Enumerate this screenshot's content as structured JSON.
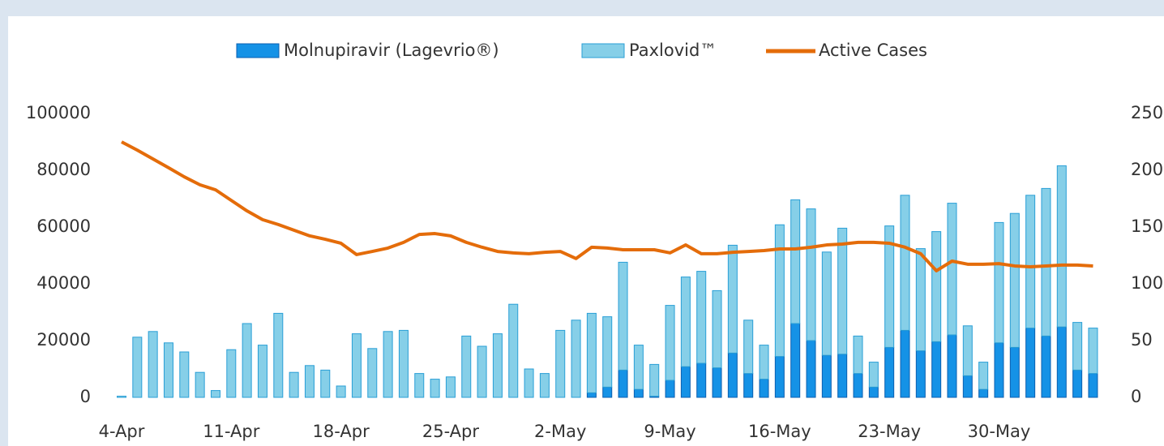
{
  "chart_data": {
    "type": "bar_line",
    "categories": [
      "4-Apr",
      null,
      null,
      null,
      null,
      null,
      null,
      "11-Apr",
      null,
      null,
      null,
      null,
      null,
      null,
      "18-Apr",
      null,
      null,
      null,
      null,
      null,
      null,
      "25-Apr",
      null,
      null,
      null,
      null,
      null,
      null,
      "2-May",
      null,
      null,
      null,
      null,
      null,
      null,
      "9-May",
      null,
      null,
      null,
      null,
      null,
      null,
      "16-May",
      null,
      null,
      null,
      null,
      null,
      null,
      "23-May",
      null,
      null,
      null,
      null,
      null,
      null,
      "30-May",
      null,
      null,
      null,
      null,
      null,
      null
    ],
    "series": [
      {
        "name": "Molnupiravir (Lagevrio®)",
        "color": "#1592e6",
        "stroke": "#0b5fb0",
        "kind": "bar",
        "axis": "y2",
        "values": [
          0,
          0,
          0,
          0,
          0,
          0,
          0,
          0,
          0,
          0,
          0,
          0,
          0,
          0,
          0,
          0,
          0,
          0,
          0,
          0,
          0,
          0,
          0,
          0,
          0,
          0,
          0,
          0,
          0,
          0,
          4,
          9,
          24,
          7,
          1,
          15,
          27,
          30,
          26,
          39,
          21,
          16,
          36,
          65,
          50,
          37,
          38,
          21,
          9,
          44,
          59,
          41,
          49,
          55,
          19,
          7,
          48,
          44,
          61,
          54,
          62,
          24,
          21
        ]
      },
      {
        "name": "Paxlovid™",
        "color": "#86cfe8",
        "stroke": "#2a9fd6",
        "kind": "bar",
        "axis": "y2",
        "values": [
          1,
          53,
          58,
          48,
          40,
          22,
          6,
          42,
          65,
          46,
          74,
          22,
          28,
          24,
          10,
          56,
          43,
          58,
          59,
          21,
          16,
          18,
          54,
          45,
          56,
          82,
          25,
          21,
          59,
          68,
          70,
          62,
          95,
          39,
          28,
          66,
          79,
          81,
          68,
          95,
          47,
          30,
          116,
          109,
          116,
          91,
          111,
          33,
          22,
          107,
          119,
          90,
          97,
          116,
          44,
          24,
          106,
          118,
          117,
          130,
          142,
          42,
          40
        ]
      },
      {
        "name": "Active Cases",
        "color": "#e46c0a",
        "kind": "line",
        "axis": "y",
        "values": [
          90000,
          87100,
          84000,
          80900,
          77700,
          74900,
          73100,
          69400,
          65700,
          62600,
          60900,
          58900,
          56900,
          55700,
          54300,
          50300,
          51400,
          52600,
          54600,
          57400,
          57700,
          56900,
          54600,
          52900,
          51400,
          50900,
          50600,
          51100,
          51400,
          48900,
          52900,
          52600,
          52000,
          52000,
          52000,
          50900,
          53700,
          50600,
          50600,
          51100,
          51400,
          51700,
          52300,
          52300,
          52900,
          53700,
          54000,
          54600,
          54600,
          54300,
          52900,
          50600,
          44600,
          48000,
          46900,
          46900,
          47100,
          46300,
          46000,
          46300,
          46600,
          46600,
          46300
        ]
      }
    ],
    "ylim": [
      0,
      100000
    ],
    "yticks": [
      0,
      20000,
      40000,
      60000,
      80000,
      100000
    ],
    "y2lim": [
      0,
      250
    ],
    "y2ticks": [
      0,
      50,
      100,
      150,
      200,
      250
    ],
    "ytick_color": "#e46c0a",
    "y2tick_color": "#1f78c8"
  }
}
